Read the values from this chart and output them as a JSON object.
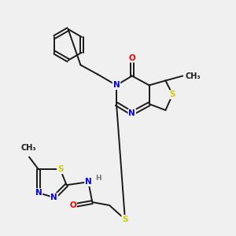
{
  "background_color": "#f0f0f0",
  "bond_color": "#1a1a1a",
  "atom_colors": {
    "N": "#0000ee",
    "S": "#cccc00",
    "O": "#ee0000",
    "C": "#1a1a1a",
    "H": "#777777"
  },
  "figsize": [
    3.0,
    3.0
  ],
  "dpi": 100,
  "lw": 1.4,
  "fs": 7.5
}
